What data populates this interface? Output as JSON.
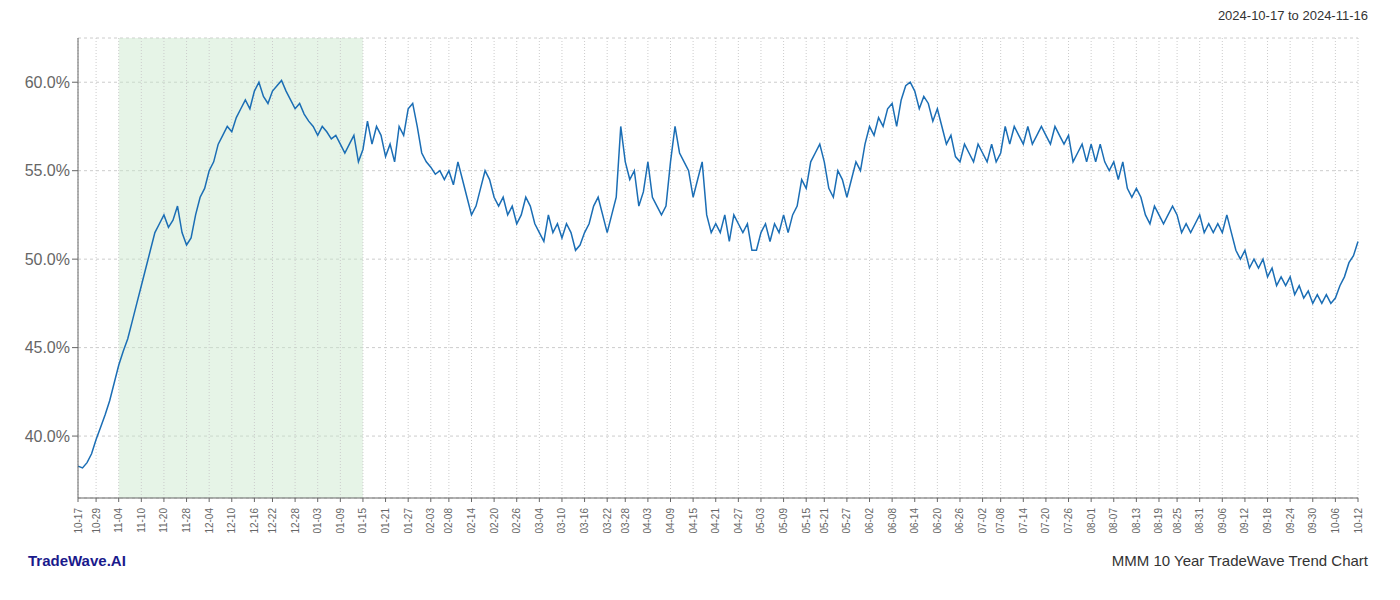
{
  "chart_data": {
    "type": "line",
    "title": "MMM 10 Year TradeWave Trend Chart",
    "subtitle": "2024-10-17 to 2024-11-16",
    "annotations": [
      "TradeWave.AI"
    ],
    "categories": [
      "10-17",
      null,
      null,
      null,
      "10-29",
      null,
      null,
      null,
      null,
      "11-04",
      null,
      null,
      null,
      null,
      "11-10",
      null,
      null,
      null,
      null,
      "11-20",
      null,
      null,
      null,
      null,
      "11-28",
      null,
      null,
      null,
      null,
      "12-04",
      null,
      null,
      null,
      null,
      "12-10",
      null,
      null,
      null,
      null,
      "12-16",
      null,
      null,
      null,
      "12-22",
      null,
      null,
      null,
      null,
      "12-28",
      null,
      null,
      null,
      null,
      "01-03",
      null,
      null,
      null,
      null,
      "01-09",
      null,
      null,
      null,
      null,
      "01-15",
      null,
      null,
      null,
      null,
      "01-21",
      null,
      null,
      null,
      null,
      "01-27",
      null,
      null,
      null,
      null,
      "02-03",
      null,
      null,
      null,
      "02-08",
      null,
      null,
      null,
      null,
      "02-14",
      null,
      null,
      null,
      null,
      "02-20",
      null,
      null,
      null,
      null,
      "02-26",
      null,
      null,
      null,
      null,
      "03-04",
      null,
      null,
      null,
      null,
      "03-10",
      null,
      null,
      null,
      null,
      "03-16",
      null,
      null,
      null,
      null,
      "03-22",
      null,
      null,
      null,
      "03-28",
      null,
      null,
      null,
      null,
      "04-03",
      null,
      null,
      null,
      null,
      "04-09",
      null,
      null,
      null,
      null,
      "04-15",
      null,
      null,
      null,
      null,
      "04-21",
      null,
      null,
      null,
      null,
      "04-27",
      null,
      null,
      null,
      null,
      "05-03",
      null,
      null,
      null,
      null,
      "05-09",
      null,
      null,
      null,
      null,
      "05-15",
      null,
      null,
      null,
      "05-21",
      null,
      null,
      null,
      null,
      "05-27",
      null,
      null,
      null,
      null,
      "06-02",
      null,
      null,
      null,
      null,
      "06-08",
      null,
      null,
      null,
      null,
      "06-14",
      null,
      null,
      null,
      null,
      "06-20",
      null,
      null,
      null,
      null,
      "06-26",
      null,
      null,
      null,
      null,
      "07-02",
      null,
      null,
      null,
      "07-08",
      null,
      null,
      null,
      null,
      "07-14",
      null,
      null,
      null,
      null,
      "07-20",
      null,
      null,
      null,
      null,
      "07-26",
      null,
      null,
      null,
      null,
      "08-01",
      null,
      null,
      null,
      null,
      "08-07",
      null,
      null,
      null,
      null,
      "08-13",
      null,
      null,
      null,
      null,
      "08-19",
      null,
      null,
      null,
      "08-25",
      null,
      null,
      null,
      null,
      "08-31",
      null,
      null,
      null,
      null,
      "09-06",
      null,
      null,
      null,
      null,
      "09-12",
      null,
      null,
      null,
      null,
      "09-18",
      null,
      null,
      null,
      null,
      "09-24",
      null,
      null,
      null,
      null,
      "09-30",
      null,
      null,
      null,
      null,
      "10-06",
      null,
      null,
      null,
      null,
      "10-12"
    ],
    "values": [
      38.3,
      38.2,
      38.5,
      39.0,
      39.8,
      40.5,
      41.2,
      42.0,
      43.0,
      44.0,
      44.8,
      45.5,
      46.5,
      47.5,
      48.5,
      49.5,
      50.5,
      51.5,
      52.0,
      52.5,
      51.8,
      52.2,
      53.0,
      51.5,
      50.8,
      51.2,
      52.5,
      53.5,
      54.0,
      55.0,
      55.5,
      56.5,
      57.0,
      57.5,
      57.2,
      58.0,
      58.5,
      59.0,
      58.5,
      59.5,
      60.0,
      59.2,
      58.8,
      59.5,
      59.8,
      60.1,
      59.5,
      59.0,
      58.5,
      58.8,
      58.2,
      57.8,
      57.5,
      57.0,
      57.5,
      57.2,
      56.8,
      57.0,
      56.5,
      56.0,
      56.5,
      57.0,
      55.5,
      56.2,
      57.8,
      56.5,
      57.5,
      57.0,
      55.8,
      56.5,
      55.5,
      57.5,
      57.0,
      58.5,
      58.8,
      57.5,
      56.0,
      55.5,
      55.2,
      54.8,
      55.0,
      54.5,
      55.0,
      54.2,
      55.5,
      54.5,
      53.5,
      52.5,
      53.0,
      54.0,
      55.0,
      54.5,
      53.5,
      53.0,
      53.5,
      52.5,
      53.0,
      52.0,
      52.5,
      53.5,
      53.0,
      52.0,
      51.5,
      51.0,
      52.5,
      51.5,
      52.0,
      51.2,
      52.0,
      51.5,
      50.5,
      50.8,
      51.5,
      52.0,
      53.0,
      53.5,
      52.5,
      51.5,
      52.5,
      53.5,
      57.5,
      55.5,
      54.5,
      55.0,
      53.0,
      53.8,
      55.5,
      53.5,
      53.0,
      52.5,
      53.0,
      55.5,
      57.5,
      56.0,
      55.5,
      55.0,
      53.5,
      54.5,
      55.5,
      52.5,
      51.5,
      52.0,
      51.5,
      52.5,
      51.0,
      52.5,
      52.0,
      51.5,
      52.0,
      50.5,
      50.5,
      51.5,
      52.0,
      51.0,
      52.0,
      51.5,
      52.5,
      51.5,
      52.5,
      53.0,
      54.5,
      54.0,
      55.5,
      56.0,
      56.5,
      55.5,
      54.0,
      53.5,
      55.0,
      54.5,
      53.5,
      54.5,
      55.5,
      55.0,
      56.5,
      57.5,
      57.0,
      58.0,
      57.5,
      58.5,
      58.8,
      57.5,
      59.0,
      59.8,
      60.0,
      59.5,
      58.5,
      59.2,
      58.8,
      57.8,
      58.5,
      57.5,
      56.5,
      57.0,
      55.8,
      55.5,
      56.5,
      56.0,
      55.5,
      56.5,
      56.0,
      55.5,
      56.5,
      55.5,
      56.0,
      57.5,
      56.5,
      57.5,
      57.0,
      56.5,
      57.5,
      56.5,
      57.0,
      57.5,
      57.0,
      56.5,
      57.5,
      57.0,
      56.5,
      57.0,
      55.5,
      56.0,
      56.5,
      55.5,
      56.5,
      55.5,
      56.5,
      55.5,
      55.0,
      55.5,
      54.5,
      55.5,
      54.0,
      53.5,
      54.0,
      53.5,
      52.5,
      52.0,
      53.0,
      52.5,
      52.0,
      52.5,
      53.0,
      52.5,
      51.5,
      52.0,
      51.5,
      52.0,
      52.5,
      51.5,
      52.0,
      51.5,
      52.0,
      51.5,
      52.5,
      51.5,
      50.5,
      50.0,
      50.5,
      49.5,
      50.0,
      49.5,
      50.0,
      49.0,
      49.5,
      48.5,
      49.0,
      48.5,
      49.0,
      48.0,
      48.5,
      47.8,
      48.2,
      47.5,
      48.0,
      47.5,
      48.0,
      47.5,
      47.8,
      48.5,
      49.0,
      49.8,
      50.2,
      51.0
    ],
    "color": "#1b6eb5",
    "ylim": [
      36.5,
      62.5
    ],
    "yticks": [
      {
        "value": 40.0,
        "label": "40.0%"
      },
      {
        "value": 45.0,
        "label": "45.0%"
      },
      {
        "value": 50.0,
        "label": "50.0%"
      },
      {
        "value": 55.0,
        "label": "55.0%"
      },
      {
        "value": 60.0,
        "label": "60.0%"
      }
    ],
    "grid": true,
    "highlight": {
      "from": "11-04",
      "to": "01-15",
      "color": "#c8e6c9"
    }
  }
}
